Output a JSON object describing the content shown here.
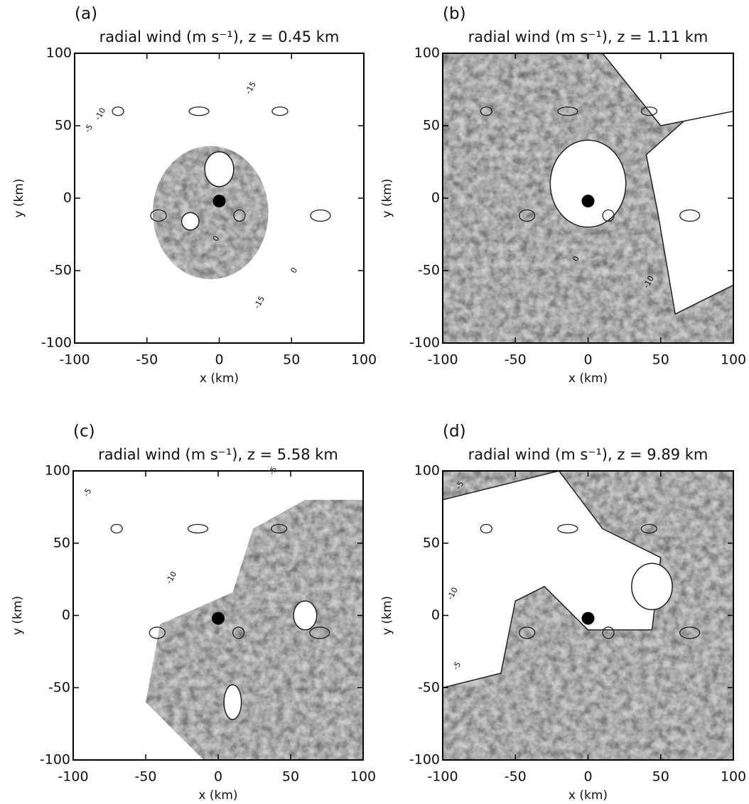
{
  "chart_data": [
    {
      "type": "contour",
      "panel_label": "(a)",
      "title": "radial wind (m s⁻¹), z = 0.45 km",
      "xlabel": "x (km)",
      "ylabel": "y (km)",
      "xlim": [
        -100,
        100
      ],
      "ylim": [
        -100,
        100
      ],
      "xticks": [
        -100,
        -50,
        0,
        50,
        100
      ],
      "yticks": [
        -100,
        -50,
        0,
        50,
        100
      ],
      "contour_labels": [
        {
          "text": "-15",
          "x": 22,
          "y": 76
        },
        {
          "text": "-10",
          "x": -82,
          "y": 58
        },
        {
          "text": "-5",
          "x": -90,
          "y": 48
        },
        {
          "text": "0",
          "x": -2,
          "y": -28
        },
        {
          "text": "-15",
          "x": 28,
          "y": -72
        },
        {
          "text": "0",
          "x": 52,
          "y": -50
        }
      ]
    },
    {
      "type": "contour",
      "panel_label": "(b)",
      "title": "radial wind (m s⁻¹), z = 1.11 km",
      "xlabel": "x (km)",
      "ylabel": "y (km)",
      "xlim": [
        -100,
        100
      ],
      "ylim": [
        -100,
        100
      ],
      "xticks": [
        -100,
        -50,
        0,
        50,
        100
      ],
      "yticks": [
        -100,
        -50,
        0,
        50,
        100
      ],
      "contour_labels": [
        {
          "text": "-10",
          "x": 42,
          "y": -58
        },
        {
          "text": "0",
          "x": -8,
          "y": -42
        }
      ]
    },
    {
      "type": "contour",
      "panel_label": "(c)",
      "title": "radial wind (m s⁻¹), z = 5.58 km",
      "xlabel": "x (km)",
      "ylabel": "y (km)",
      "xlim": [
        -100,
        100
      ],
      "ylim": [
        -100,
        100
      ],
      "xticks": [
        -100,
        -50,
        0,
        50,
        100
      ],
      "yticks": [
        -100,
        -50,
        0,
        50,
        100
      ],
      "contour_labels": [
        {
          "text": "-5",
          "x": -90,
          "y": 85
        },
        {
          "text": "-5",
          "x": 38,
          "y": 100
        },
        {
          "text": "-10",
          "x": -32,
          "y": 26
        }
      ]
    },
    {
      "type": "contour",
      "panel_label": "(d)",
      "title": "radial wind (m s⁻¹), z = 9.89 km",
      "xlabel": "x (km)",
      "ylabel": "y (km)",
      "xlim": [
        -100,
        100
      ],
      "ylim": [
        -100,
        100
      ],
      "xticks": [
        -100,
        -50,
        0,
        50,
        100
      ],
      "yticks": [
        -100,
        -50,
        0,
        50,
        100
      ],
      "contour_labels": [
        {
          "text": "-5",
          "x": -88,
          "y": 90
        },
        {
          "text": "-10",
          "x": -93,
          "y": 15
        },
        {
          "text": "-5",
          "x": -90,
          "y": -35
        }
      ]
    }
  ]
}
